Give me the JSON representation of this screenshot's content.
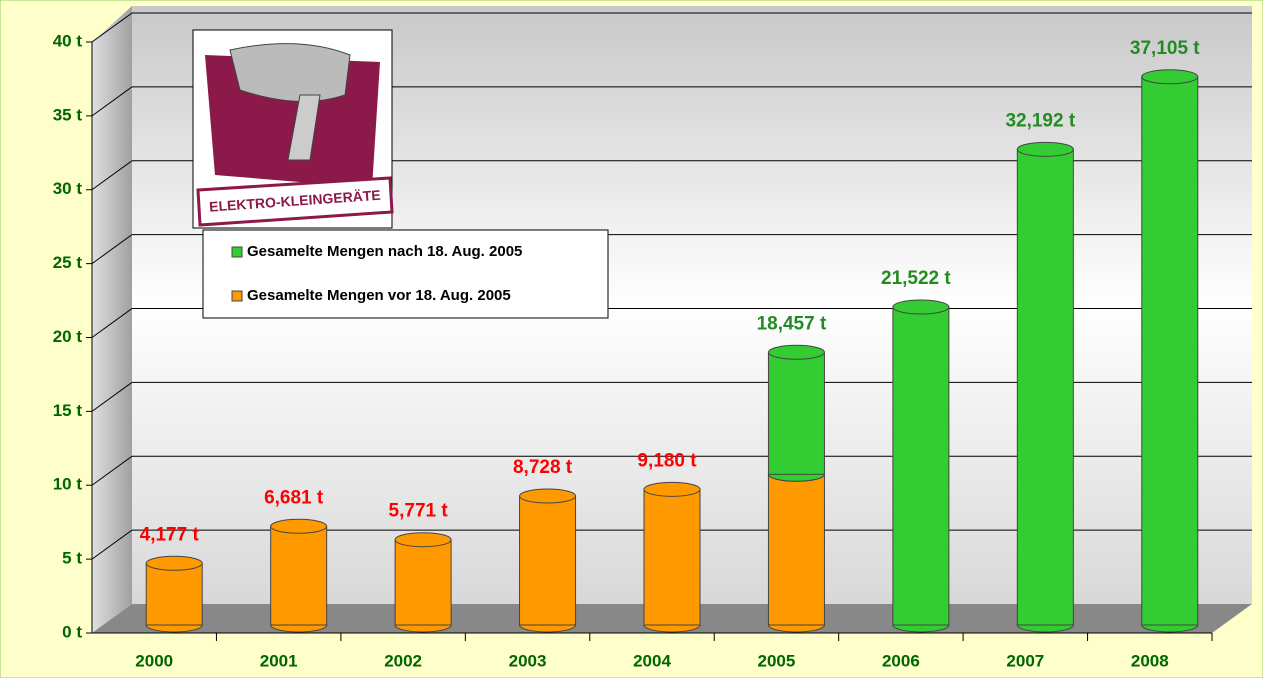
{
  "chart_data": {
    "type": "bar3d_stacked",
    "logo_text": "ELEKTRO-KLEINGERÄTE",
    "categories": [
      "2000",
      "2001",
      "2002",
      "2003",
      "2004",
      "2005",
      "2006",
      "2007",
      "2008"
    ],
    "series": [
      {
        "name": "Gesamelte Mengen nach 18. Aug. 2005",
        "color": "#33cc33",
        "label_color": "#228b22",
        "values": [
          null,
          null,
          null,
          null,
          null,
          8.257,
          21.522,
          32.192,
          37.105
        ],
        "value_labels": [
          null,
          null,
          null,
          null,
          null,
          null,
          "21,522 t",
          "32,192 t",
          "37,105 t"
        ]
      },
      {
        "name": "Gesamelte Mengen vor 18. Aug. 2005",
        "color": "#ff9900",
        "label_color": "#ff0000",
        "values": [
          4.177,
          6.681,
          5.771,
          8.728,
          9.18,
          10.2,
          null,
          null,
          null
        ],
        "value_labels": [
          "4,177 t",
          "6,681 t",
          "5,771 t",
          "8,728 t",
          "9,180 t",
          null,
          null,
          null,
          null
        ]
      }
    ],
    "total_labels": [
      null,
      null,
      null,
      null,
      null,
      {
        "value": 18.457,
        "label": "18,457 t"
      },
      null,
      null,
      null
    ],
    "ylim": [
      0,
      40
    ],
    "yticks": [
      {
        "value": 0,
        "label": "0 t"
      },
      {
        "value": 5,
        "label": "5 t"
      },
      {
        "value": 10,
        "label": "10 t"
      },
      {
        "value": 15,
        "label": "15 t"
      },
      {
        "value": 20,
        "label": "20 t"
      },
      {
        "value": 25,
        "label": "25 t"
      },
      {
        "value": 30,
        "label": "30 t"
      },
      {
        "value": 35,
        "label": "35 t"
      },
      {
        "value": 40,
        "label": "40 t"
      }
    ],
    "grid": true
  }
}
